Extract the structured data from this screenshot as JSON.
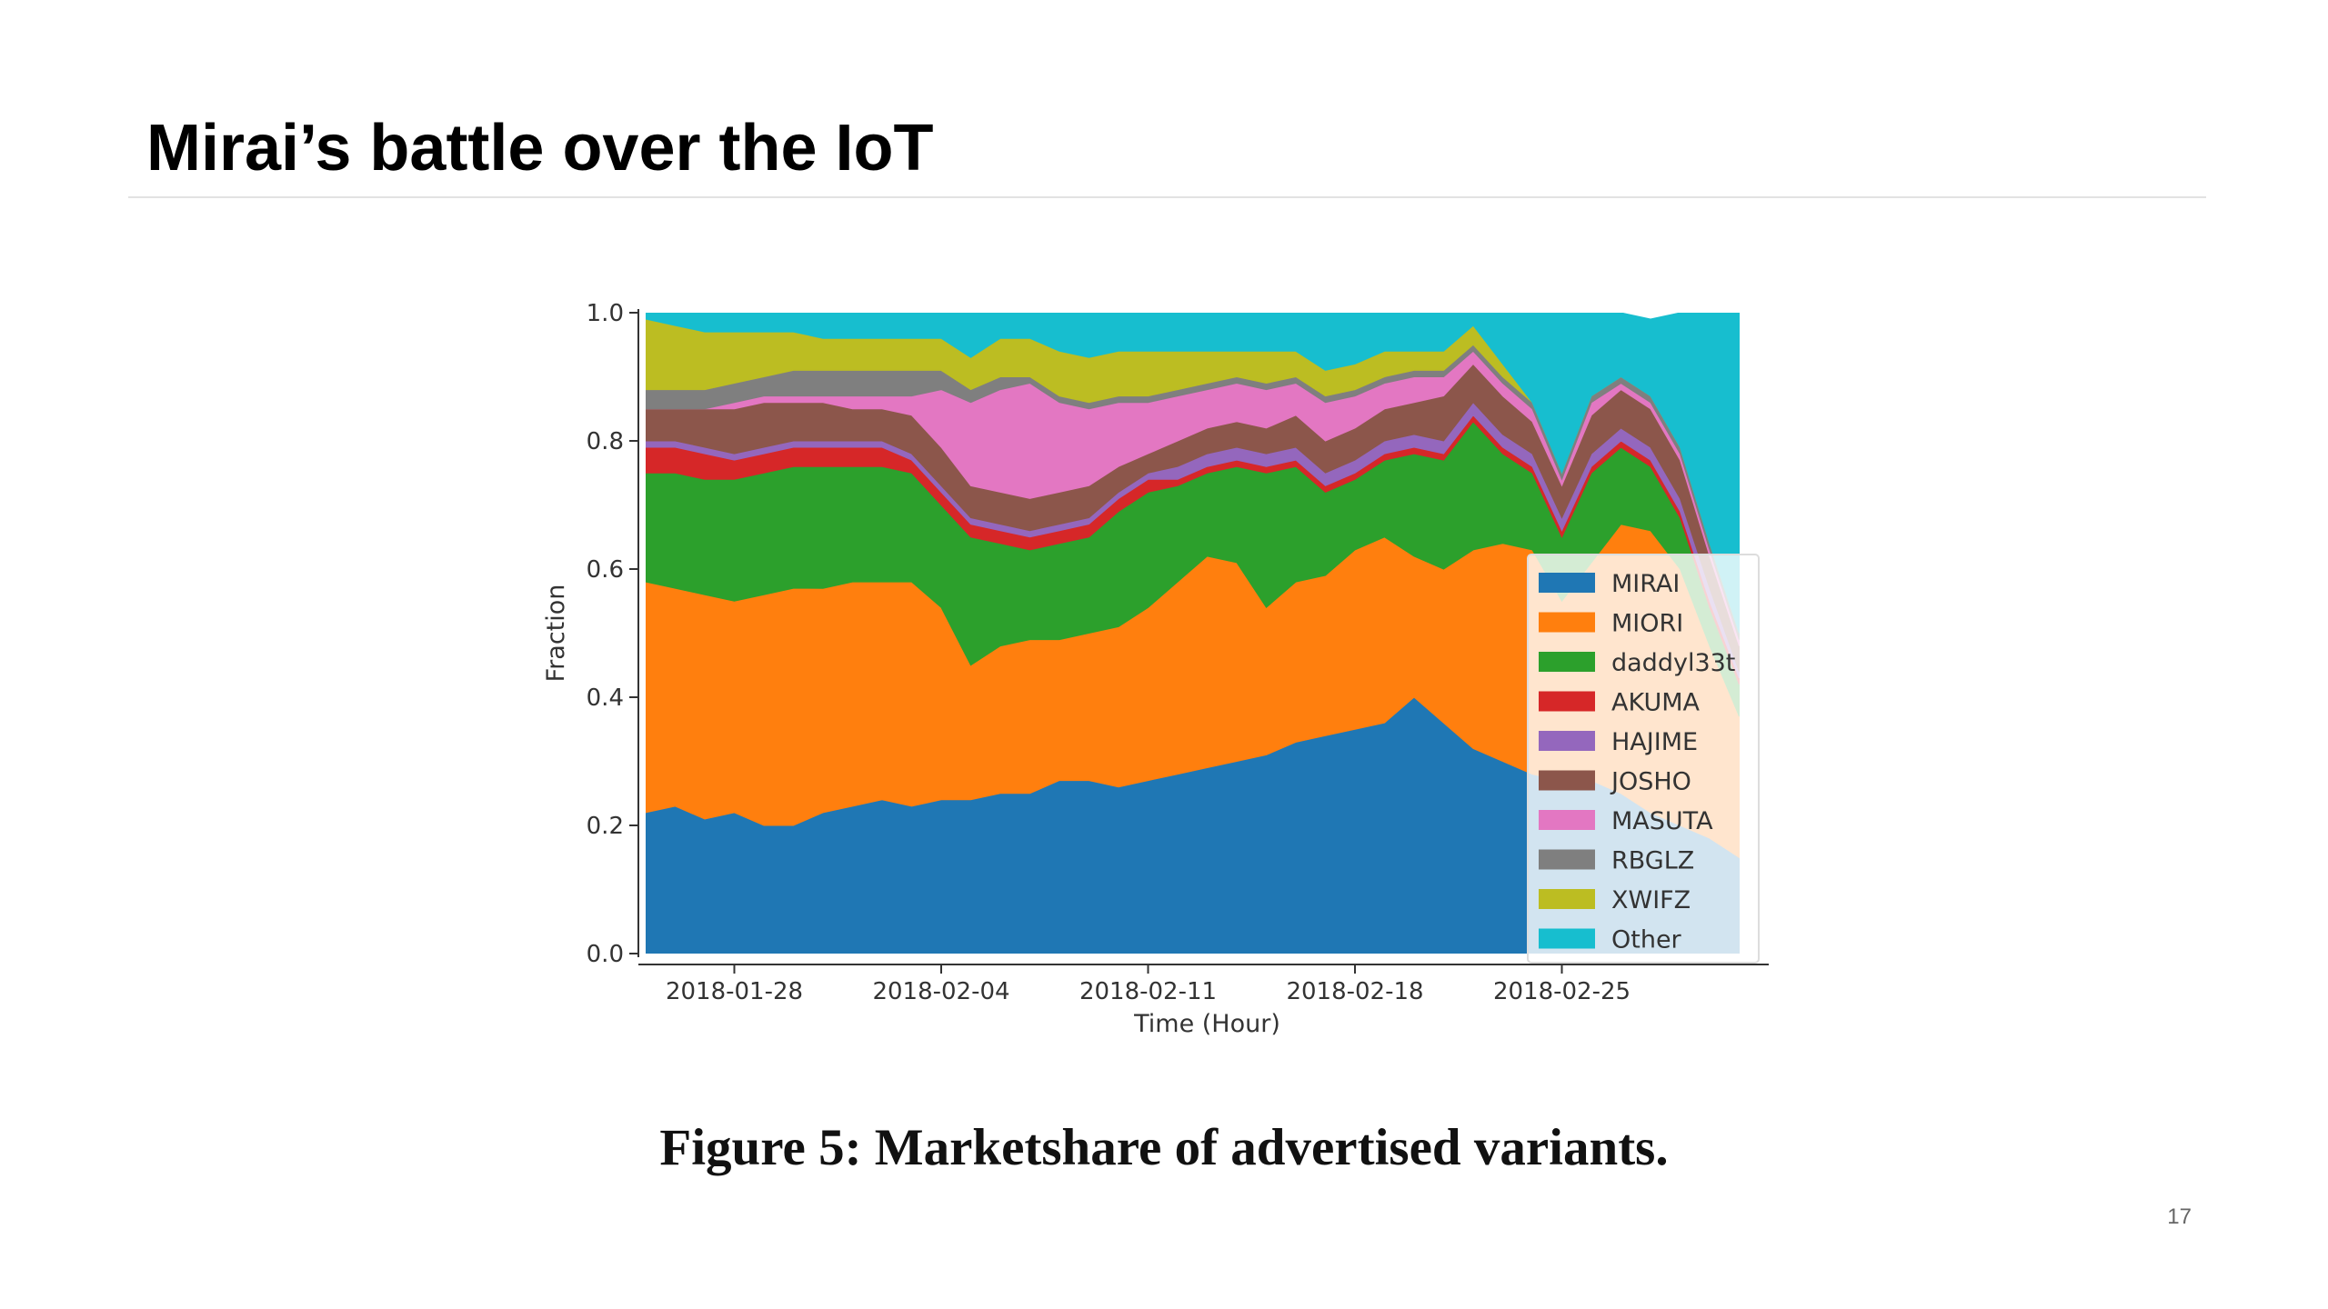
{
  "slide": {
    "title": "Mirai’s battle over the IoT",
    "caption": "Figure 5: Marketshare of advertised variants.",
    "page_number": "17"
  },
  "chart_data": {
    "type": "area",
    "stacked": true,
    "xlabel": "Time (Hour)",
    "ylabel": "Fraction",
    "ylim": [
      0,
      1
    ],
    "yticks": [
      "0.0",
      "0.2",
      "0.4",
      "0.6",
      "0.8",
      "1.0"
    ],
    "xticks": [
      "2018-01-28",
      "2018-02-04",
      "2018-02-11",
      "2018-02-18",
      "2018-02-25"
    ],
    "xlim": [
      "2018-01-25",
      "2018-03-04"
    ],
    "legend_position": "lower-right",
    "x": [
      "2018-01-25",
      "2018-01-26",
      "2018-01-27",
      "2018-01-28",
      "2018-01-29",
      "2018-01-30",
      "2018-01-31",
      "2018-02-01",
      "2018-02-02",
      "2018-02-03",
      "2018-02-04",
      "2018-02-05",
      "2018-02-06",
      "2018-02-07",
      "2018-02-08",
      "2018-02-09",
      "2018-02-10",
      "2018-02-11",
      "2018-02-12",
      "2018-02-13",
      "2018-02-14",
      "2018-02-15",
      "2018-02-16",
      "2018-02-17",
      "2018-02-18",
      "2018-02-19",
      "2018-02-20",
      "2018-02-21",
      "2018-02-22",
      "2018-02-23",
      "2018-02-24",
      "2018-02-25",
      "2018-02-26",
      "2018-02-27",
      "2018-02-28",
      "2018-03-01",
      "2018-03-02",
      "2018-03-03"
    ],
    "series": [
      {
        "name": "MIRAI",
        "color": "#1f77b4",
        "values": [
          0.22,
          0.23,
          0.21,
          0.22,
          0.2,
          0.2,
          0.22,
          0.23,
          0.24,
          0.23,
          0.24,
          0.24,
          0.25,
          0.25,
          0.27,
          0.27,
          0.26,
          0.27,
          0.28,
          0.29,
          0.3,
          0.31,
          0.33,
          0.34,
          0.35,
          0.36,
          0.4,
          0.36,
          0.32,
          0.3,
          0.28,
          0.27,
          0.27,
          0.25,
          0.22,
          0.2,
          0.18,
          0.15
        ]
      },
      {
        "name": "MIORI",
        "color": "#ff7f0e",
        "values": [
          0.36,
          0.34,
          0.35,
          0.33,
          0.36,
          0.37,
          0.35,
          0.35,
          0.34,
          0.35,
          0.3,
          0.21,
          0.23,
          0.24,
          0.22,
          0.23,
          0.25,
          0.27,
          0.3,
          0.33,
          0.31,
          0.23,
          0.25,
          0.25,
          0.28,
          0.29,
          0.22,
          0.24,
          0.31,
          0.34,
          0.35,
          0.28,
          0.34,
          0.42,
          0.44,
          0.4,
          0.3,
          0.22
        ]
      },
      {
        "name": "daddyl33t",
        "color": "#2ca02c",
        "values": [
          0.17,
          0.18,
          0.18,
          0.19,
          0.19,
          0.19,
          0.19,
          0.18,
          0.18,
          0.17,
          0.16,
          0.2,
          0.16,
          0.14,
          0.15,
          0.15,
          0.18,
          0.18,
          0.15,
          0.13,
          0.15,
          0.21,
          0.18,
          0.13,
          0.11,
          0.12,
          0.16,
          0.17,
          0.2,
          0.14,
          0.12,
          0.1,
          0.14,
          0.12,
          0.1,
          0.08,
          0.06,
          0.05
        ]
      },
      {
        "name": "AKUMA",
        "color": "#d62728",
        "values": [
          0.04,
          0.04,
          0.04,
          0.03,
          0.03,
          0.03,
          0.03,
          0.03,
          0.03,
          0.02,
          0.02,
          0.02,
          0.02,
          0.02,
          0.02,
          0.02,
          0.02,
          0.02,
          0.01,
          0.01,
          0.01,
          0.01,
          0.01,
          0.01,
          0.01,
          0.01,
          0.01,
          0.01,
          0.01,
          0.01,
          0.01,
          0.01,
          0.01,
          0.01,
          0.01,
          0.01,
          0.01,
          0.01
        ]
      },
      {
        "name": "HAJIME",
        "color": "#9467bd",
        "values": [
          0.01,
          0.01,
          0.01,
          0.01,
          0.01,
          0.01,
          0.01,
          0.01,
          0.01,
          0.01,
          0.01,
          0.01,
          0.01,
          0.01,
          0.01,
          0.01,
          0.01,
          0.01,
          0.02,
          0.02,
          0.02,
          0.02,
          0.02,
          0.02,
          0.02,
          0.02,
          0.02,
          0.02,
          0.02,
          0.02,
          0.02,
          0.02,
          0.02,
          0.02,
          0.02,
          0.02,
          0.02,
          0.01
        ]
      },
      {
        "name": "JOSHO",
        "color": "#8c564b",
        "values": [
          0.05,
          0.05,
          0.06,
          0.07,
          0.07,
          0.06,
          0.06,
          0.05,
          0.05,
          0.06,
          0.06,
          0.05,
          0.05,
          0.05,
          0.05,
          0.05,
          0.04,
          0.03,
          0.04,
          0.04,
          0.04,
          0.04,
          0.05,
          0.05,
          0.05,
          0.05,
          0.05,
          0.07,
          0.06,
          0.06,
          0.05,
          0.05,
          0.06,
          0.06,
          0.06,
          0.06,
          0.05,
          0.04
        ]
      },
      {
        "name": "MASUTA",
        "color": "#e377c2",
        "values": [
          0.0,
          0.0,
          0.0,
          0.01,
          0.01,
          0.01,
          0.01,
          0.02,
          0.02,
          0.03,
          0.09,
          0.13,
          0.16,
          0.18,
          0.14,
          0.12,
          0.1,
          0.08,
          0.07,
          0.06,
          0.06,
          0.06,
          0.05,
          0.06,
          0.05,
          0.04,
          0.04,
          0.03,
          0.02,
          0.02,
          0.02,
          0.01,
          0.02,
          0.01,
          0.01,
          0.01,
          0.01,
          0.01
        ]
      },
      {
        "name": "RBGLZ",
        "color": "#7f7f7f",
        "values": [
          0.03,
          0.03,
          0.03,
          0.03,
          0.03,
          0.04,
          0.04,
          0.04,
          0.04,
          0.04,
          0.03,
          0.02,
          0.02,
          0.01,
          0.01,
          0.01,
          0.01,
          0.01,
          0.01,
          0.01,
          0.01,
          0.01,
          0.01,
          0.01,
          0.01,
          0.01,
          0.01,
          0.01,
          0.01,
          0.01,
          0.01,
          0.01,
          0.01,
          0.01,
          0.01,
          0.01,
          0.01,
          0.01
        ]
      },
      {
        "name": "XWIFZ",
        "color": "#bcbd22",
        "values": [
          0.11,
          0.1,
          0.09,
          0.08,
          0.07,
          0.06,
          0.05,
          0.05,
          0.05,
          0.05,
          0.05,
          0.05,
          0.06,
          0.06,
          0.07,
          0.07,
          0.07,
          0.07,
          0.06,
          0.05,
          0.04,
          0.05,
          0.04,
          0.04,
          0.04,
          0.04,
          0.03,
          0.03,
          0.03,
          0.02,
          0.0,
          0.0,
          0.0,
          0.0,
          0.0,
          0.0,
          0.0,
          0.0
        ]
      },
      {
        "name": "Other",
        "color": "#17becf",
        "values": [
          0.01,
          0.02,
          0.03,
          0.03,
          0.03,
          0.03,
          0.04,
          0.04,
          0.04,
          0.04,
          0.04,
          0.07,
          0.04,
          0.04,
          0.06,
          0.07,
          0.06,
          0.06,
          0.06,
          0.06,
          0.06,
          0.06,
          0.06,
          0.09,
          0.08,
          0.06,
          0.06,
          0.06,
          0.02,
          0.08,
          0.14,
          0.25,
          0.13,
          0.1,
          0.12,
          0.21,
          0.36,
          0.5
        ]
      }
    ]
  }
}
